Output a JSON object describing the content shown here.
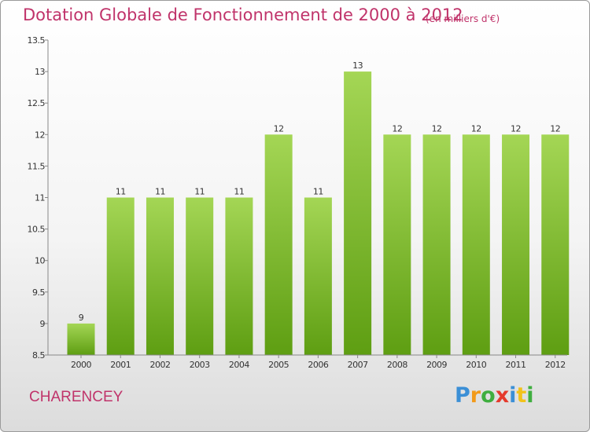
{
  "header": {
    "title": "Dotation Globale de Fonctionnement de 2000 à 2012",
    "unit": "(en milliers d'€)"
  },
  "footer": {
    "commune": "CHARENCEY",
    "brand": [
      "P",
      "r",
      "o",
      "x",
      "i",
      "t",
      "i"
    ],
    "brand_colors": [
      "#3b8fd6",
      "#f29a1a",
      "#3fae3f",
      "#e53a2c",
      "#3b8fd6",
      "#f2c21a",
      "#3fae3f"
    ]
  },
  "colors": {
    "bar_top": "#a4d655",
    "bar_bottom": "#5e9e12",
    "text_accent": "#c0336a"
  },
  "chart_data": {
    "type": "bar",
    "categories": [
      "2000",
      "2001",
      "2002",
      "2003",
      "2004",
      "2005",
      "2006",
      "2007",
      "2008",
      "2009",
      "2010",
      "2011",
      "2012"
    ],
    "values": [
      9,
      11,
      11,
      11,
      11,
      12,
      11,
      13,
      12,
      12,
      12,
      12,
      12
    ],
    "data_labels": [
      "9",
      "11",
      "11",
      "11",
      "11",
      "12",
      "11",
      "13",
      "12",
      "12",
      "12",
      "12",
      "12"
    ],
    "title": "Dotation Globale de Fonctionnement de 2000 à 2012",
    "xlabel": "",
    "ylabel": "",
    "ylim": [
      8.5,
      13.5
    ],
    "yticks": [
      8.5,
      9,
      9.5,
      10,
      10.5,
      11,
      11.5,
      12,
      12.5,
      13,
      13.5
    ],
    "ytick_labels": [
      "8.5",
      "9",
      "9.5",
      "10",
      "10.5",
      "11",
      "11.5",
      "12",
      "12.5",
      "13",
      "13.5"
    ],
    "grid": false,
    "legend": "none"
  }
}
